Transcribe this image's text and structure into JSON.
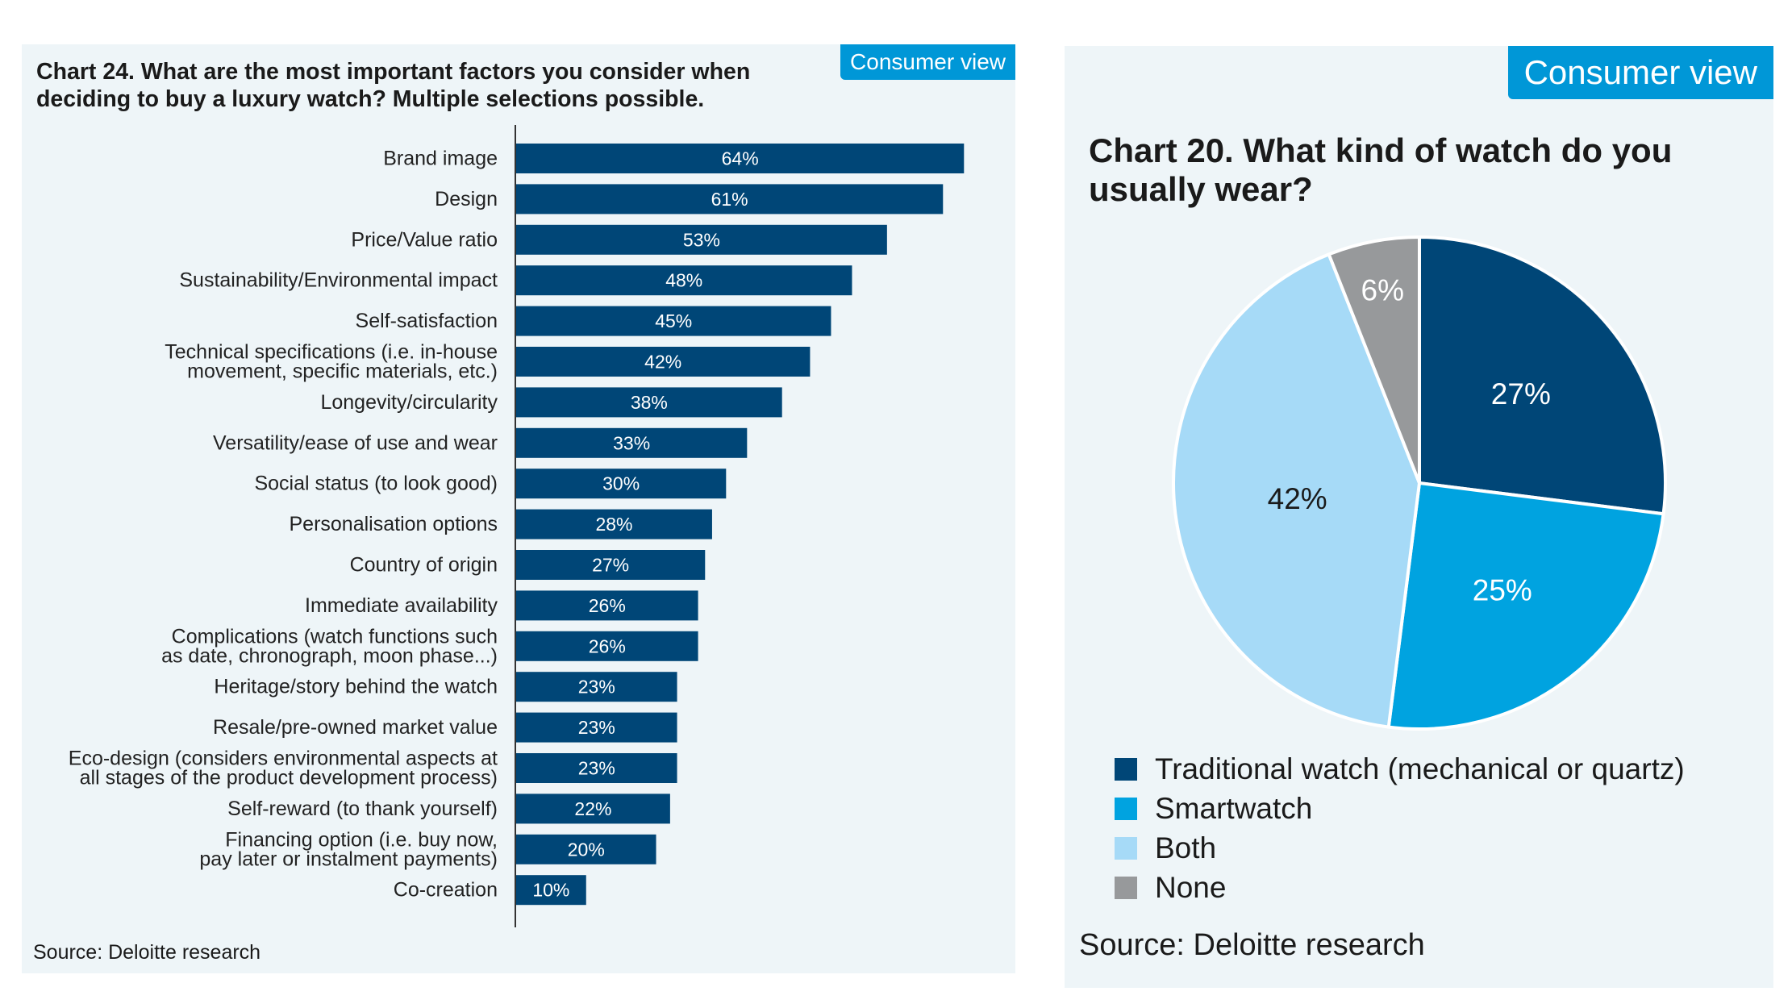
{
  "left_panel": {
    "badge": "Consumer view",
    "title": "Chart 24. What are the most important factors you consider when deciding to buy a luxury watch? Multiple selections possible.",
    "source": "Source: Deloitte research"
  },
  "right_panel": {
    "badge": "Consumer view",
    "title": "Chart 20. What kind of watch do you usually wear?",
    "source": "Source: Deloitte research"
  },
  "colors": {
    "bar": "#004677",
    "traditional": "#004677",
    "smartwatch": "#00a3e0",
    "both": "#a6daf7",
    "none": "#97999b",
    "badge": "#0097d7"
  },
  "chart_data": [
    {
      "type": "bar",
      "orientation": "horizontal",
      "categories": [
        [
          "Brand image"
        ],
        [
          "Design"
        ],
        [
          "Price/Value ratio"
        ],
        [
          "Sustainability/Environmental impact"
        ],
        [
          "Self-satisfaction"
        ],
        [
          "Technical specifications (i.e. in-house",
          "movement, specific materials, etc.)"
        ],
        [
          "Longevity/circularity"
        ],
        [
          "Versatility/ease of use and wear"
        ],
        [
          "Social status (to look good)"
        ],
        [
          "Personalisation options"
        ],
        [
          "Country of origin"
        ],
        [
          "Immediate availability"
        ],
        [
          "Complications (watch functions such",
          "as date, chronograph, moon phase...)"
        ],
        [
          "Heritage/story behind the watch"
        ],
        [
          "Resale/pre-owned market value"
        ],
        [
          "Eco-design (considers environmental aspects at",
          "all stages of the product development process)"
        ],
        [
          "Self-reward (to thank yourself)"
        ],
        [
          "Financing option (i.e. buy now,",
          "pay later or instalment payments)"
        ],
        [
          "Co-creation"
        ]
      ],
      "values": [
        64,
        61,
        53,
        48,
        45,
        42,
        38,
        33,
        30,
        28,
        27,
        26,
        26,
        23,
        23,
        23,
        22,
        20,
        10
      ],
      "value_labels": [
        "64%",
        "61%",
        "53%",
        "48%",
        "45%",
        "42%",
        "38%",
        "33%",
        "30%",
        "28%",
        "27%",
        "26%",
        "26%",
        "23%",
        "23%",
        "23%",
        "22%",
        "20%",
        "10%"
      ],
      "unit": "%",
      "xlim": [
        0,
        68
      ],
      "grid": false
    },
    {
      "type": "pie",
      "labels": [
        "Traditional watch (mechanical or quartz)",
        "Smartwatch",
        "Both",
        "None"
      ],
      "values": [
        27,
        25,
        42,
        6
      ],
      "value_labels": [
        "27%",
        "25%",
        "42%",
        "6%"
      ],
      "start": "12 o'clock",
      "direction": "clockwise",
      "legend": "bottom"
    }
  ]
}
